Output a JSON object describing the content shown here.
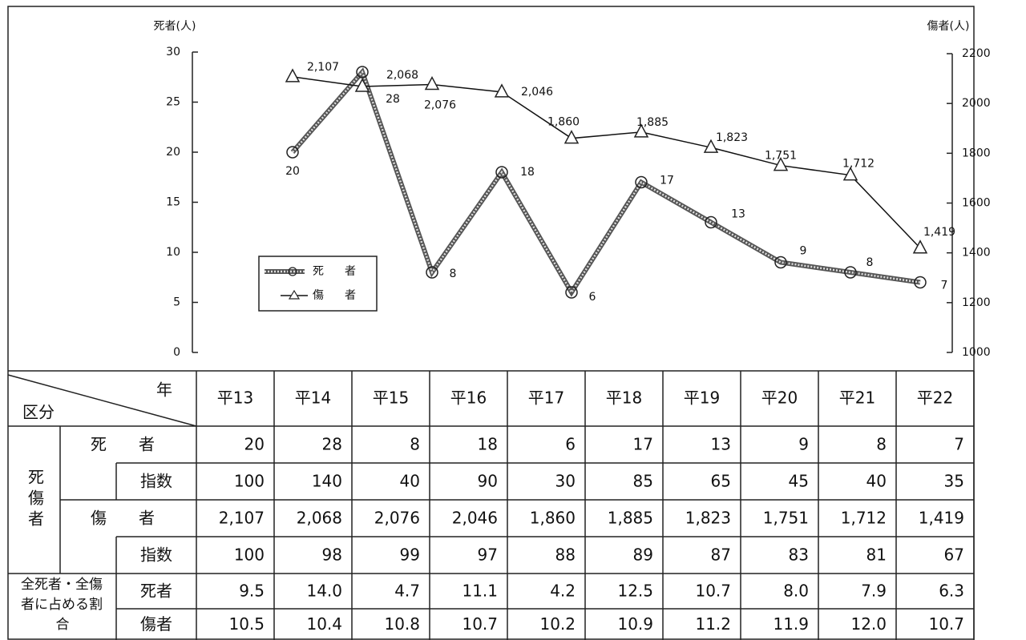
{
  "chart_data": {
    "type": "line",
    "y_label": "死者(人)",
    "y2_label": "傷者(人)",
    "ylim": [
      0,
      30
    ],
    "yticks": [
      0,
      5,
      10,
      15,
      20,
      25,
      30
    ],
    "y2lim": [
      1000,
      2200
    ],
    "y2ticks": [
      1000,
      1200,
      1400,
      1600,
      1800,
      2000,
      2200
    ],
    "legend": "upper-left",
    "series": [
      {
        "name": "死　者",
        "color": "#555555",
        "marker": "circle",
        "values": [
          20,
          28,
          8,
          18,
          6,
          17,
          13,
          9,
          8,
          7
        ]
      },
      {
        "name": "傷　者",
        "color": "#111111",
        "marker": "triangle",
        "axis": "y2",
        "values": [
          2107,
          2068,
          2076,
          2046,
          1860,
          1885,
          1823,
          1751,
          1712,
          1419
        ],
        "value_labels": [
          "2,107",
          "2,068",
          "2,076",
          "2,046",
          "1,860",
          "1,885",
          "1,823",
          "1,751",
          "1,712",
          "1,419"
        ]
      }
    ]
  },
  "table": {
    "corner_year": "年",
    "corner_kubun": "区分",
    "columns": [
      "平13",
      "平14",
      "平15",
      "平16",
      "平17",
      "平18",
      "平19",
      "平20",
      "平21",
      "平22"
    ],
    "group_label": "死傷者",
    "ratio_label": [
      "全死者・全傷",
      "者に占める割",
      "合"
    ],
    "rows": [
      {
        "label": "死　者",
        "values": [
          "20",
          "28",
          "8",
          "18",
          "6",
          "17",
          "13",
          "9",
          "8",
          "7"
        ]
      },
      {
        "label": "指数",
        "values": [
          "100",
          "140",
          "40",
          "90",
          "30",
          "85",
          "65",
          "45",
          "40",
          "35"
        ]
      },
      {
        "label": "傷　者",
        "values": [
          "2,107",
          "2,068",
          "2,076",
          "2,046",
          "1,860",
          "1,885",
          "1,823",
          "1,751",
          "1,712",
          "1,419"
        ]
      },
      {
        "label": "指数",
        "values": [
          "100",
          "98",
          "99",
          "97",
          "88",
          "89",
          "87",
          "83",
          "81",
          "67"
        ]
      },
      {
        "label": "死者",
        "values": [
          "9.5",
          "14.0",
          "4.7",
          "11.1",
          "4.2",
          "12.5",
          "10.7",
          "8.0",
          "7.9",
          "6.3"
        ]
      },
      {
        "label": "傷者",
        "values": [
          "10.5",
          "10.4",
          "10.8",
          "10.7",
          "10.2",
          "10.9",
          "11.2",
          "11.9",
          "12.0",
          "10.7"
        ]
      }
    ]
  }
}
